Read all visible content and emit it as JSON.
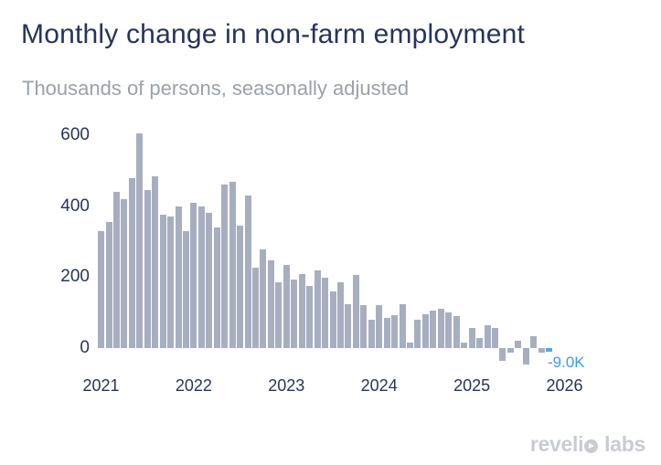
{
  "header": {
    "title": "Monthly change in non-farm employment",
    "subtitle": "Thousands of persons, seasonally adjusted"
  },
  "chart_data": {
    "type": "bar",
    "title": "Monthly change in non-farm employment",
    "subtitle": "Thousands of persons, seasonally adjusted",
    "unit": "thousands of persons",
    "x": [
      "2021-01",
      "2021-02",
      "2021-03",
      "2021-04",
      "2021-05",
      "2021-06",
      "2021-07",
      "2021-08",
      "2021-09",
      "2021-10",
      "2021-11",
      "2021-12",
      "2022-01",
      "2022-02",
      "2022-03",
      "2022-04",
      "2022-05",
      "2022-06",
      "2022-07",
      "2022-08",
      "2022-09",
      "2022-10",
      "2022-11",
      "2022-12",
      "2023-01",
      "2023-02",
      "2023-03",
      "2023-04",
      "2023-05",
      "2023-06",
      "2023-07",
      "2023-08",
      "2023-09",
      "2023-10",
      "2023-11",
      "2023-12",
      "2024-01",
      "2024-02",
      "2024-03",
      "2024-04",
      "2024-05",
      "2024-06",
      "2024-07",
      "2024-08",
      "2024-09",
      "2024-10",
      "2024-11",
      "2024-12",
      "2025-01",
      "2025-02",
      "2025-03",
      "2025-04",
      "2025-05",
      "2025-06",
      "2025-07",
      "2025-08",
      "2025-09",
      "2025-10",
      "2025-11"
    ],
    "values": [
      330,
      355,
      440,
      420,
      480,
      605,
      445,
      485,
      375,
      370,
      400,
      330,
      410,
      400,
      380,
      340,
      462,
      470,
      345,
      430,
      228,
      277,
      248,
      186,
      234,
      192,
      209,
      175,
      218,
      199,
      160,
      186,
      125,
      207,
      120,
      80,
      120,
      86,
      92,
      125,
      15,
      80,
      95,
      105,
      110,
      100,
      90,
      15,
      57,
      29,
      64,
      57,
      -37,
      -14,
      22,
      -45,
      33,
      -12,
      -9
    ],
    "yticks": [
      0,
      200,
      400,
      600
    ],
    "xticks": [
      "2021",
      "2022",
      "2023",
      "2024",
      "2025",
      "2026"
    ],
    "ylim": [
      -60,
      620
    ],
    "grid": false,
    "legend": false,
    "last_point_label": "-9.0K",
    "highlight_last": true,
    "bar_color": "#a7aec0",
    "highlight_color": "#51a7f2",
    "label_color": "#3b9bf0",
    "axis_text_color": "#28335c"
  },
  "footer": {
    "logo_left": "reveli",
    "logo_right": "labs"
  }
}
